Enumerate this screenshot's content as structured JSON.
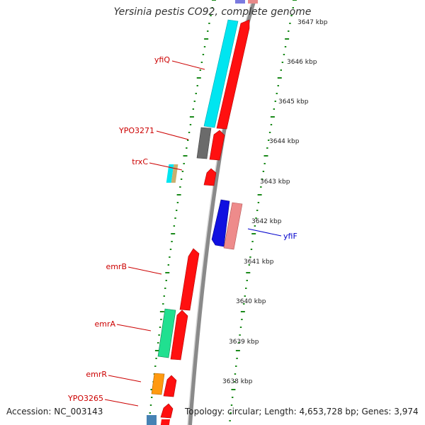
{
  "title": "Yersinia pestis CO92, complete genome",
  "accession": "Accession: NC_003143",
  "summary": "Topology: circular; Length: 4,653,728 bp; Genes: 3,974",
  "colors": {
    "background": "#ffffff",
    "backbone": "#8a8a8a",
    "tick": "#1a8a1a",
    "gene_label": "#cc0000",
    "highlight_label": "#0000cc"
  },
  "scale_labels": [
    "3647 kbp",
    "3646 kbp",
    "3645 kbp",
    "3644 kbp",
    "3643 kbp",
    "3642 kbp",
    "3641 kbp",
    "3640 kbp",
    "3639 kbp",
    "3638 kbp"
  ],
  "gene_labels": [
    {
      "text": "yfiQ",
      "strand": "left"
    },
    {
      "text": "YPO3271",
      "strand": "left"
    },
    {
      "text": "trxC",
      "strand": "left"
    },
    {
      "text": "emrB",
      "strand": "left"
    },
    {
      "text": "emrA",
      "strand": "left"
    },
    {
      "text": "emrR",
      "strand": "left"
    },
    {
      "text": "YPO3265",
      "strand": "left"
    },
    {
      "text": "yfiF",
      "strand": "right"
    }
  ]
}
